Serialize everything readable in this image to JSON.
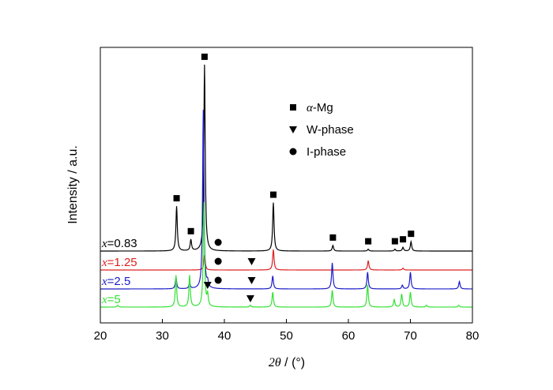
{
  "chart_data": {
    "type": "line",
    "xlabel": {
      "symbol": "2θ",
      "unit": " / (°)"
    },
    "ylabel": "Intensity / a.u.",
    "xlim": [
      20,
      80
    ],
    "xticks": [
      20,
      30,
      40,
      50,
      60,
      70,
      80
    ],
    "yticks": "none",
    "grid": false,
    "legend": {
      "placement": "upper-right",
      "entries": [
        {
          "marker": "square",
          "symbol": "α",
          "label": "-Mg"
        },
        {
          "marker": "triangle-down",
          "label": "W-phase"
        },
        {
          "marker": "circle",
          "label": "I-phase"
        }
      ]
    },
    "series": [
      {
        "name": "x=0.83",
        "label_var": "x",
        "label_val": "=0.83",
        "color": "#000000",
        "baseline": 0,
        "peaks": [
          [
            32.3,
            0.24
          ],
          [
            34.6,
            0.06
          ],
          [
            36.8,
            1.0
          ],
          [
            47.9,
            0.26
          ],
          [
            57.5,
            0.03
          ],
          [
            63.2,
            0.01
          ],
          [
            67.5,
            0.01
          ],
          [
            68.8,
            0.02
          ],
          [
            70.1,
            0.05
          ]
        ]
      },
      {
        "name": "x=1.25",
        "label_var": "x",
        "label_val": "=1.25",
        "color": "#dd2020",
        "baseline": 0,
        "peaks": [
          [
            36.8,
            0.08
          ],
          [
            47.9,
            0.11
          ],
          [
            63.2,
            0.05
          ],
          [
            68.8,
            0.01
          ]
        ]
      },
      {
        "name": "x=2.5",
        "label_var": "x",
        "label_val": "=2.5",
        "color": "#1c1cc8",
        "baseline": 0,
        "peaks": [
          [
            32.2,
            0.06
          ],
          [
            34.4,
            0.03
          ],
          [
            36.6,
            0.96
          ],
          [
            37.3,
            0.03
          ],
          [
            47.8,
            0.07
          ],
          [
            57.4,
            0.14
          ],
          [
            63.1,
            0.09
          ],
          [
            68.7,
            0.02
          ],
          [
            70.0,
            0.09
          ],
          [
            77.9,
            0.04
          ]
        ]
      },
      {
        "name": "x=5",
        "label_var": "x",
        "label_val": "=5",
        "color": "#33e033",
        "baseline": 0,
        "peaks": [
          [
            22.8,
            0.01
          ],
          [
            32.2,
            0.17
          ],
          [
            34.4,
            0.17
          ],
          [
            36.7,
            0.56
          ],
          [
            37.3,
            0.06
          ],
          [
            44.2,
            0.01
          ],
          [
            47.8,
            0.08
          ],
          [
            57.4,
            0.09
          ],
          [
            63.1,
            0.12
          ],
          [
            67.4,
            0.04
          ],
          [
            68.6,
            0.07
          ],
          [
            70.0,
            0.08
          ],
          [
            72.6,
            0.01
          ],
          [
            77.8,
            0.01
          ]
        ]
      }
    ],
    "markers": [
      {
        "kind": "square",
        "series": 0,
        "x": [
          32.3,
          34.6,
          36.8,
          47.9,
          57.5,
          63.2,
          67.5,
          68.8,
          70.1
        ]
      },
      {
        "kind": "circle",
        "series": 0,
        "x": [
          39.0
        ]
      },
      {
        "kind": "circle",
        "series": 1,
        "x": [
          39.0
        ]
      },
      {
        "kind": "triangle-down",
        "series": 1,
        "x": [
          44.4
        ]
      },
      {
        "kind": "triangle-down",
        "series": 2,
        "x": [
          37.3,
          44.4
        ]
      },
      {
        "kind": "circle",
        "series": 2,
        "x": [
          39.0
        ]
      },
      {
        "kind": "triangle-down",
        "series": 3,
        "x": [
          44.2
        ]
      }
    ]
  }
}
